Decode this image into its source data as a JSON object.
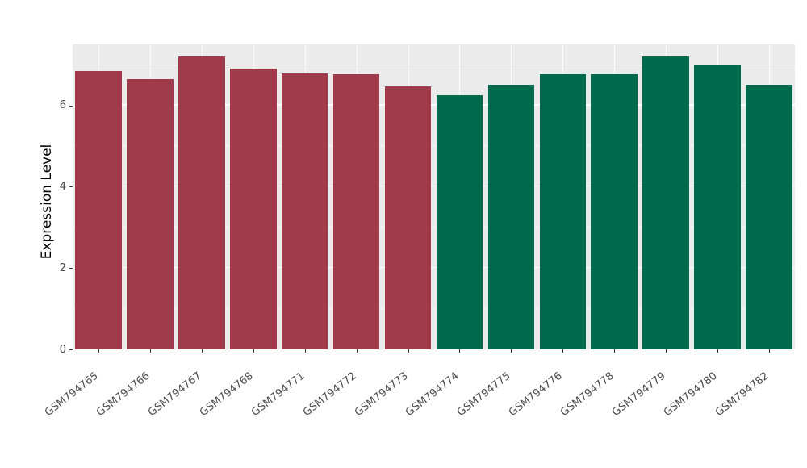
{
  "chart_data": {
    "type": "bar",
    "title": "",
    "xlabel": "",
    "ylabel": "Expression Level",
    "ylim": [
      0,
      7.5
    ],
    "yticks": [
      0,
      2,
      4,
      6
    ],
    "grid": true,
    "legend": "none",
    "panel_background": "#EBEBEB",
    "grid_color": "#FFFFFF",
    "categories": [
      "GSM794765",
      "GSM794766",
      "GSM794767",
      "GSM794768",
      "GSM794771",
      "GSM794772",
      "GSM794773",
      "GSM794774",
      "GSM794775",
      "GSM794776",
      "GSM794778",
      "GSM794779",
      "GSM794780",
      "GSM794782"
    ],
    "values": [
      6.85,
      6.65,
      7.2,
      6.9,
      6.78,
      6.77,
      6.47,
      6.25,
      6.5,
      6.77,
      6.77,
      7.2,
      7.0,
      6.5
    ],
    "bar_colors": [
      "#A03B4B",
      "#A03B4B",
      "#A03B4B",
      "#A03B4B",
      "#A03B4B",
      "#A03B4B",
      "#A03B4B",
      "#006B4C",
      "#006B4C",
      "#006B4C",
      "#006B4C",
      "#006B4C",
      "#006B4C",
      "#006B4C"
    ],
    "group_colors": {
      "left_group": "#A03B4B",
      "right_group": "#006B4C"
    }
  }
}
